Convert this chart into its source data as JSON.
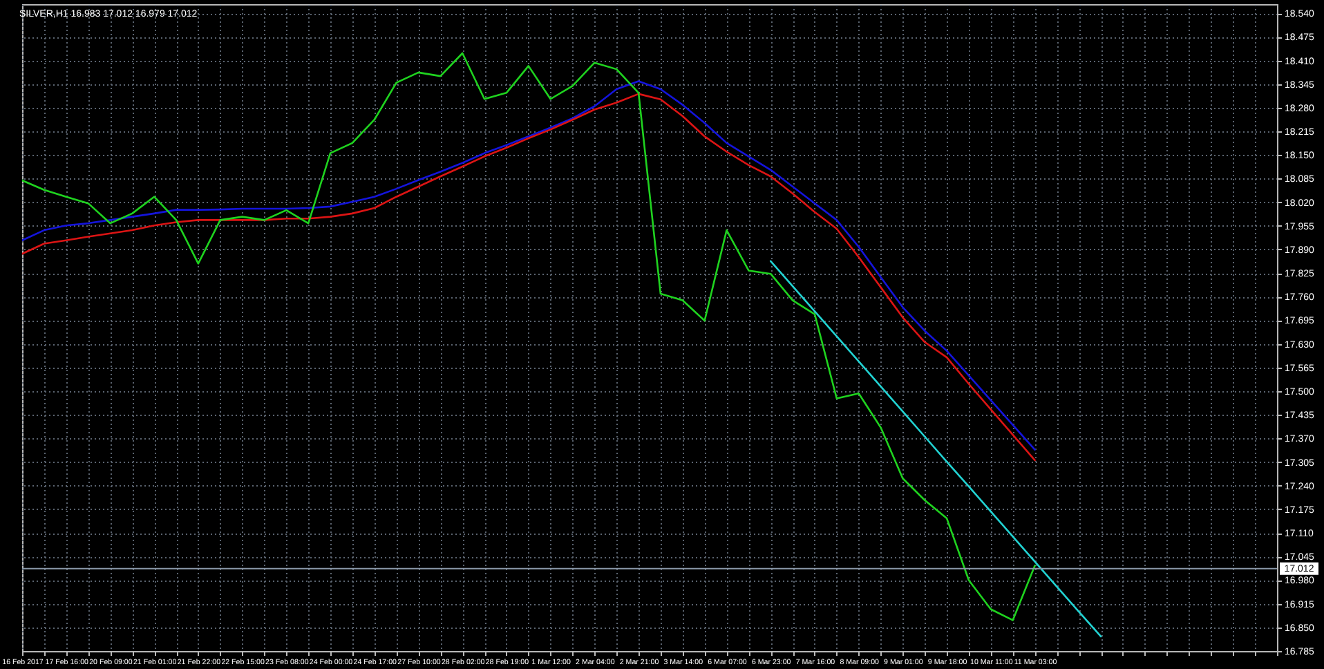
{
  "chart_data": {
    "type": "line",
    "title": "SILVER,H1 16.983 17.012 16.979 17.012",
    "categories": [
      "16 Feb 2017",
      null,
      "17 Feb 16:00",
      null,
      "20 Feb 09:00",
      null,
      "21 Feb 01:00",
      null,
      "21 Feb 22:00",
      null,
      "22 Feb 15:00",
      null,
      "23 Feb 08:00",
      null,
      "24 Feb 00:00",
      null,
      "24 Feb 17:00",
      null,
      "27 Feb 10:00",
      null,
      "28 Feb 02:00",
      null,
      "28 Feb 19:00",
      null,
      "1 Mar 12:00",
      null,
      "2 Mar 04:00",
      null,
      "2 Mar 21:00",
      null,
      "3 Mar 14:00",
      null,
      "6 Mar 07:00",
      null,
      "6 Mar 23:00",
      null,
      "7 Mar 16:00",
      null,
      "8 Mar 09:00",
      null,
      "9 Mar 01:00",
      null,
      "9 Mar 18:00",
      null,
      "10 Mar 11:00",
      null,
      "11 Mar 03:00",
      null,
      null,
      null,
      null,
      null,
      null,
      null,
      null,
      null,
      null,
      null
    ],
    "ylim": [
      16.785,
      18.565
    ],
    "yticks": [
      {
        "value": 16.785,
        "label": "16.785"
      },
      {
        "value": 16.85,
        "label": "16.850"
      },
      {
        "value": 16.915,
        "label": "16.915"
      },
      {
        "value": 16.98,
        "label": "16.980"
      },
      {
        "value": 17.045,
        "label": "17.045"
      },
      {
        "value": 17.11,
        "label": "17.110"
      },
      {
        "value": 17.175,
        "label": "17.175"
      },
      {
        "value": 17.24,
        "label": "17.240"
      },
      {
        "value": 17.305,
        "label": "17.305"
      },
      {
        "value": 17.37,
        "label": "17.370"
      },
      {
        "value": 17.435,
        "label": "17.435"
      },
      {
        "value": 17.5,
        "label": "17.500"
      },
      {
        "value": 17.565,
        "label": "17.565"
      },
      {
        "value": 17.63,
        "label": "17.630"
      },
      {
        "value": 17.695,
        "label": "17.695"
      },
      {
        "value": 17.76,
        "label": "17.760"
      },
      {
        "value": 17.825,
        "label": "17.825"
      },
      {
        "value": 17.89,
        "label": "17.890"
      },
      {
        "value": 17.955,
        "label": "17.955"
      },
      {
        "value": 18.02,
        "label": "18.020"
      },
      {
        "value": 18.085,
        "label": "18.085"
      },
      {
        "value": 18.15,
        "label": "18.150"
      },
      {
        "value": 18.215,
        "label": "18.215"
      },
      {
        "value": 18.28,
        "label": "18.280"
      },
      {
        "value": 18.345,
        "label": "18.345"
      },
      {
        "value": 18.41,
        "label": "18.410"
      },
      {
        "value": 18.475,
        "label": "18.475"
      },
      {
        "value": 18.54,
        "label": "18.540"
      }
    ],
    "grid": true,
    "series": [
      {
        "color": "#1414dc",
        "values": [
          17.915,
          17.943,
          17.956,
          17.962,
          17.971,
          17.98,
          17.989,
          17.999,
          17.999,
          18.0,
          18.002,
          18.002,
          18.002,
          18.004,
          18.008,
          18.021,
          18.035,
          18.057,
          18.081,
          18.104,
          18.128,
          18.155,
          18.177,
          18.201,
          18.225,
          18.251,
          18.284,
          18.331,
          18.353,
          18.331,
          18.288,
          18.238,
          18.183,
          18.146,
          18.109,
          18.063,
          18.017,
          17.971,
          17.897,
          17.814,
          17.731,
          17.666,
          17.611,
          17.543,
          17.475,
          17.407,
          17.339,
          null,
          null,
          null,
          null,
          null,
          null,
          null,
          null,
          null,
          null,
          null
        ]
      },
      {
        "color": "#dc1414",
        "values": [
          17.878,
          17.906,
          17.915,
          17.925,
          17.934,
          17.943,
          17.956,
          17.965,
          17.971,
          17.971,
          17.971,
          17.971,
          17.975,
          17.975,
          17.98,
          17.989,
          18.004,
          18.035,
          18.063,
          18.091,
          18.118,
          18.146,
          18.17,
          18.196,
          18.22,
          18.247,
          18.275,
          18.294,
          18.318,
          18.303,
          18.257,
          18.201,
          18.159,
          18.122,
          18.091,
          18.044,
          17.993,
          17.947,
          17.869,
          17.786,
          17.703,
          17.635,
          17.593,
          17.52,
          17.45,
          17.38,
          17.31,
          null,
          null,
          null,
          null,
          null,
          null,
          null,
          null,
          null,
          null,
          null
        ]
      },
      {
        "color": "#1fd31f",
        "values": [
          18.08,
          18.054,
          18.035,
          18.017,
          17.962,
          17.989,
          18.035,
          17.971,
          17.851,
          17.971,
          17.98,
          17.971,
          17.998,
          17.962,
          18.155,
          18.183,
          18.247,
          18.349,
          18.377,
          18.367,
          18.43,
          18.304,
          18.321,
          18.395,
          18.304,
          18.34,
          18.404,
          18.386,
          18.321,
          17.768,
          17.75,
          17.694,
          17.943,
          17.832,
          17.823,
          17.75,
          17.712,
          17.48,
          17.494,
          17.4,
          17.26,
          17.2,
          17.15,
          16.98,
          16.9,
          16.87,
          17.02,
          null,
          null,
          null,
          null,
          null,
          null,
          null,
          null,
          null,
          null,
          null
        ]
      },
      {
        "color": "#22d3d3",
        "values": [
          null,
          null,
          null,
          null,
          null,
          null,
          null,
          null,
          null,
          null,
          null,
          null,
          null,
          null,
          null,
          null,
          null,
          null,
          null,
          null,
          null,
          null,
          null,
          null,
          null,
          null,
          null,
          null,
          null,
          null,
          null,
          null,
          null,
          null,
          17.858,
          17.789,
          17.72,
          17.651,
          17.582,
          17.513,
          17.444,
          17.375,
          17.306,
          17.238,
          17.169,
          17.1,
          17.031,
          16.962,
          16.893,
          16.825,
          null,
          null,
          null,
          null,
          null,
          null,
          null,
          null
        ]
      }
    ],
    "ref_lines": [
      {
        "axis": "y",
        "value": 17.012,
        "label": "17.012",
        "color": "#8a98a8"
      }
    ]
  }
}
